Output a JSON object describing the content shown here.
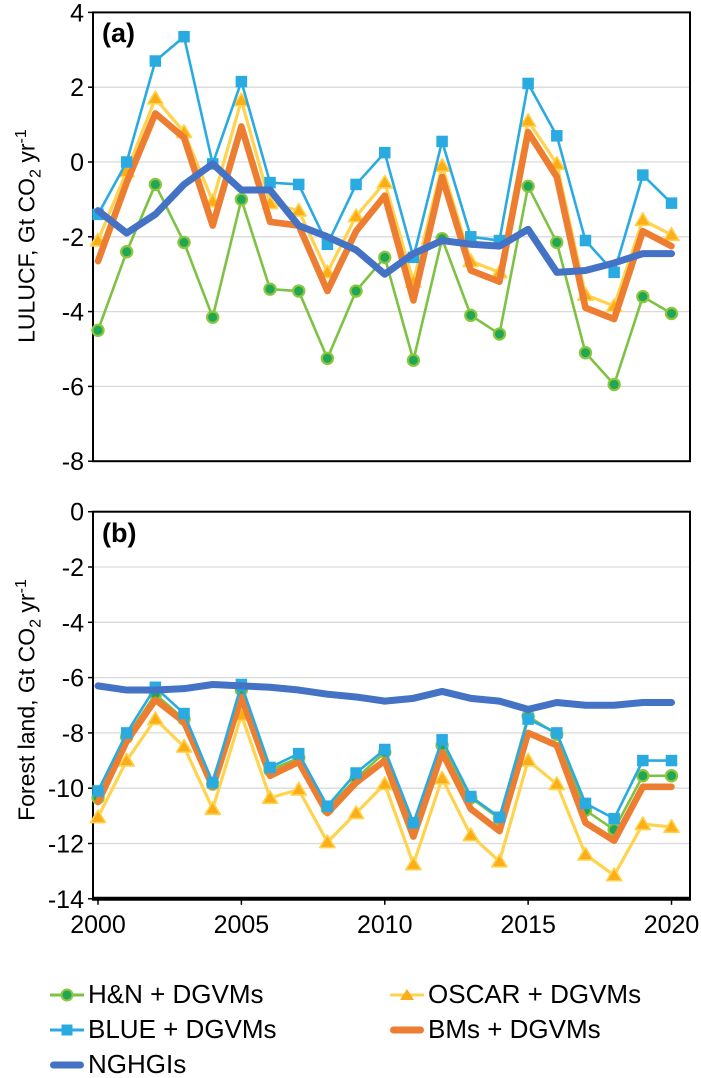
{
  "figure": {
    "background": "#ffffff",
    "grid_color": "#d9d9d9",
    "axis_color": "#000000"
  },
  "ylabels": {
    "a": {
      "pre": "LULUCF, Gt CO",
      "sub": "2",
      "mid": " yr",
      "sup": "-1"
    },
    "b": {
      "pre": "Forest land, Gt CO",
      "sub": "2",
      "mid": " yr",
      "sup": "-1"
    }
  },
  "legend": {
    "items": [
      {
        "label": "H&N + DGVMs",
        "swatch": "line-circle",
        "line_color": "#7DC242",
        "marker_fill": "#1FA753",
        "marker_edge": "#8CC63F",
        "row": 0,
        "col": 0
      },
      {
        "label": "OSCAR + DGVMs",
        "swatch": "line-triangle",
        "line_color": "#FFD34D",
        "marker_fill": "#FBAE17",
        "marker_edge": "#FFD34D",
        "row": 0,
        "col": 1
      },
      {
        "label": "BLUE + DGVMs",
        "swatch": "line-square",
        "line_color": "#29ABE2",
        "marker_fill": "#29ABE2",
        "marker_edge": "#29ABE2",
        "row": 1,
        "col": 0
      },
      {
        "label": "BMs + DGVMs",
        "swatch": "thick-line",
        "line_color": "#ED7D31",
        "marker_fill": "",
        "marker_edge": "",
        "row": 1,
        "col": 1
      },
      {
        "label": "NGHGIs",
        "swatch": "thick-line",
        "line_color": "#4472C4",
        "marker_fill": "",
        "marker_edge": "",
        "row": 2,
        "col": 0
      }
    ]
  },
  "chart_data": [
    {
      "panel": "a",
      "type": "line",
      "title": "(a)",
      "ylabel": "LULUCF, Gt CO2 yr-1",
      "xlabel": "",
      "x": [
        2000,
        2001,
        2002,
        2003,
        2004,
        2005,
        2006,
        2007,
        2008,
        2009,
        2010,
        2011,
        2012,
        2013,
        2014,
        2015,
        2016,
        2017,
        2018,
        2019,
        2020
      ],
      "ylim": [
        -8,
        4
      ],
      "yticks": [
        4,
        2,
        0,
        -2,
        -4,
        -6,
        -8
      ],
      "xticks": [
        2000,
        2005,
        2010,
        2015,
        2020
      ],
      "show_x_labels": false,
      "grid": true,
      "series": [
        {
          "name": "H&N + DGVMs",
          "marker": "circle",
          "color": "#7DC242",
          "marker_fill": "#1FA753",
          "marker_edge": "#8CC63F",
          "values": [
            -4.5,
            -2.4,
            -0.6,
            -2.15,
            -4.15,
            -1.0,
            -3.4,
            -3.45,
            -5.25,
            -3.45,
            -2.55,
            -5.3,
            -2.05,
            -4.1,
            -4.6,
            -0.65,
            -2.15,
            -5.1,
            -5.95,
            -3.6,
            -4.05
          ]
        },
        {
          "name": "OSCAR + DGVMs",
          "marker": "triangle",
          "color": "#FFD34D",
          "marker_fill": "#FBAE17",
          "marker_edge": "#FFD34D",
          "values": [
            -2.1,
            -0.25,
            1.7,
            0.8,
            -1.05,
            1.65,
            -1.1,
            -1.3,
            -2.95,
            -1.45,
            -0.55,
            -3.2,
            -0.1,
            -2.65,
            -2.95,
            1.1,
            -0.05,
            -3.55,
            -3.85,
            -1.55,
            -1.95
          ]
        },
        {
          "name": "BLUE + DGVMs",
          "marker": "square",
          "color": "#29ABE2",
          "marker_fill": "#29ABE2",
          "marker_edge": "#29ABE2",
          "values": [
            -1.4,
            0.0,
            2.7,
            3.35,
            -0.05,
            2.15,
            -0.55,
            -0.6,
            -2.2,
            -0.6,
            0.25,
            -2.55,
            0.55,
            -2.0,
            -2.1,
            2.1,
            0.7,
            -2.1,
            -2.95,
            -0.35,
            -1.1
          ]
        },
        {
          "name": "BMs + DGVMs",
          "marker": "none",
          "color": "#ED7D31",
          "marker_fill": "",
          "marker_edge": "",
          "values": [
            -2.65,
            -0.55,
            1.3,
            0.65,
            -1.7,
            0.95,
            -1.6,
            -1.7,
            -3.45,
            -1.85,
            -0.9,
            -3.7,
            -0.4,
            -2.9,
            -3.2,
            0.8,
            -0.4,
            -3.9,
            -4.2,
            -1.85,
            -2.25
          ]
        },
        {
          "name": "NGHGIs",
          "marker": "none",
          "color": "#4472C4",
          "marker_fill": "",
          "marker_edge": "",
          "values": [
            -1.3,
            -1.9,
            -1.4,
            -0.6,
            -0.05,
            -0.75,
            -0.75,
            -1.7,
            -2.0,
            -2.35,
            -3.0,
            -2.45,
            -2.1,
            -2.2,
            -2.25,
            -1.8,
            -2.95,
            -2.9,
            -2.7,
            -2.45,
            -2.45
          ]
        }
      ]
    },
    {
      "panel": "b",
      "type": "line",
      "title": "(b)",
      "ylabel": "Forest land, Gt CO2 yr-1",
      "xlabel": "",
      "x": [
        2000,
        2001,
        2002,
        2003,
        2004,
        2005,
        2006,
        2007,
        2008,
        2009,
        2010,
        2011,
        2012,
        2013,
        2014,
        2015,
        2016,
        2017,
        2018,
        2019,
        2020
      ],
      "ylim": [
        -14,
        0
      ],
      "yticks": [
        0,
        -2,
        -4,
        -6,
        -8,
        -10,
        -12,
        -14
      ],
      "xticks": [
        2000,
        2005,
        2010,
        2015,
        2020
      ],
      "show_x_labels": true,
      "grid": true,
      "series": [
        {
          "name": "H&N + DGVMs",
          "marker": "circle",
          "color": "#7DC242",
          "marker_fill": "#1FA753",
          "marker_edge": "#8CC63F",
          "values": [
            -10.35,
            -8.15,
            -6.6,
            -7.5,
            -9.85,
            -6.45,
            -9.35,
            -8.9,
            -10.75,
            -9.65,
            -8.7,
            -11.3,
            -8.45,
            -10.35,
            -11.1,
            -7.4,
            -8.05,
            -10.8,
            -11.5,
            -9.55,
            -9.55
          ]
        },
        {
          "name": "OSCAR + DGVMs",
          "marker": "triangle",
          "color": "#FFD34D",
          "marker_fill": "#FBAE17",
          "marker_edge": "#FFD34D",
          "values": [
            -11.05,
            -9.0,
            -7.5,
            -8.5,
            -10.75,
            -7.35,
            -10.35,
            -10.05,
            -11.95,
            -10.9,
            -9.85,
            -12.75,
            -9.65,
            -11.7,
            -12.65,
            -9.0,
            -9.85,
            -12.4,
            -13.15,
            -11.3,
            -11.4
          ]
        },
        {
          "name": "BLUE + DGVMs",
          "marker": "square",
          "color": "#29ABE2",
          "marker_fill": "#29ABE2",
          "marker_edge": "#29ABE2",
          "values": [
            -10.1,
            -8.0,
            -6.35,
            -7.3,
            -9.8,
            -6.25,
            -9.25,
            -8.75,
            -10.65,
            -9.45,
            -8.6,
            -11.25,
            -8.25,
            -10.3,
            -11.05,
            -7.5,
            -8.0,
            -10.55,
            -11.1,
            -9.0,
            -9.0
          ]
        },
        {
          "name": "BMs + DGVMs",
          "marker": "none",
          "color": "#ED7D31",
          "marker_fill": "",
          "marker_edge": "",
          "values": [
            -10.5,
            -8.3,
            -6.8,
            -7.6,
            -9.95,
            -6.7,
            -9.55,
            -9.05,
            -10.9,
            -9.8,
            -9.0,
            -11.75,
            -8.7,
            -10.75,
            -11.55,
            -8.0,
            -8.45,
            -11.25,
            -11.9,
            -9.95,
            -9.95
          ]
        },
        {
          "name": "NGHGIs",
          "marker": "none",
          "color": "#4472C4",
          "marker_fill": "",
          "marker_edge": "",
          "values": [
            -6.3,
            -6.45,
            -6.45,
            -6.4,
            -6.25,
            -6.3,
            -6.35,
            -6.45,
            -6.6,
            -6.7,
            -6.85,
            -6.75,
            -6.5,
            -6.75,
            -6.85,
            -7.15,
            -6.9,
            -7.0,
            -7.0,
            -6.9,
            -6.9
          ]
        }
      ]
    }
  ]
}
